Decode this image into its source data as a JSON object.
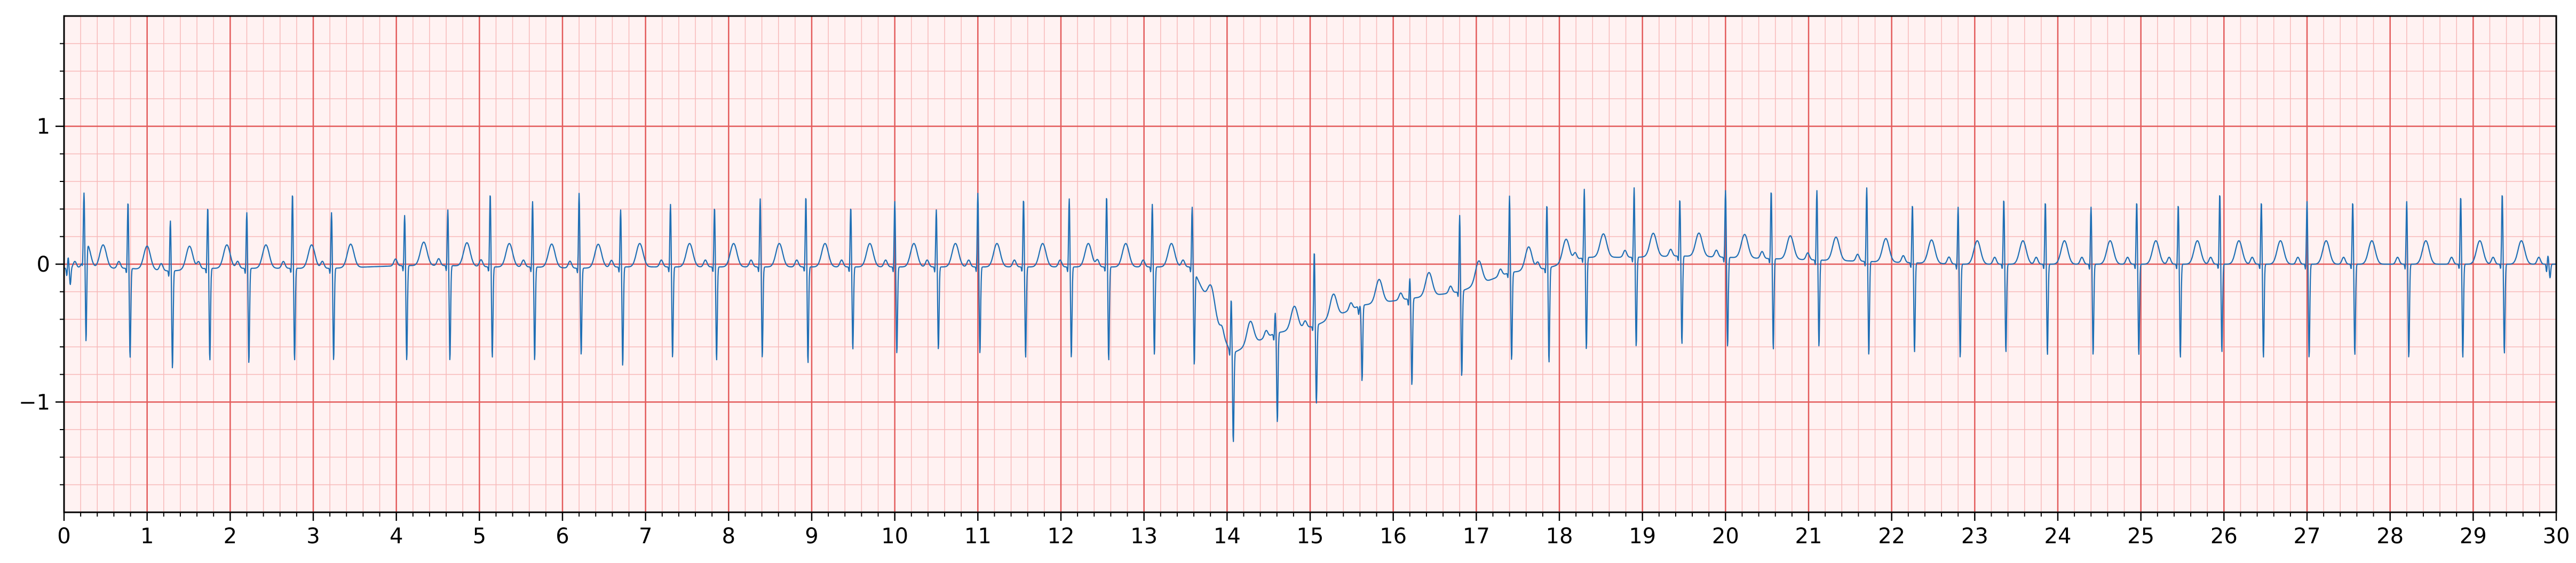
{
  "chart_data": {
    "type": "line",
    "title": "",
    "xlabel": "",
    "ylabel": "",
    "xlim": [
      0,
      30
    ],
    "ylim": [
      -1.8,
      1.8
    ],
    "x_ticks": [
      0,
      1,
      2,
      3,
      4,
      5,
      6,
      7,
      8,
      9,
      10,
      11,
      12,
      13,
      14,
      15,
      16,
      17,
      18,
      19,
      20,
      21,
      22,
      23,
      24,
      25,
      26,
      27,
      28,
      29,
      30
    ],
    "x_tick_labels": [
      "0",
      "1",
      "2",
      "3",
      "4",
      "5",
      "6",
      "7",
      "8",
      "9",
      "10",
      "11",
      "12",
      "13",
      "14",
      "15",
      "16",
      "17",
      "18",
      "19",
      "20",
      "21",
      "22",
      "23",
      "24",
      "25",
      "26",
      "27",
      "28",
      "29",
      "30"
    ],
    "y_ticks": [
      -1,
      0,
      1
    ],
    "y_tick_labels": [
      "−1",
      "0",
      "1"
    ],
    "grid": {
      "major_step_x": 1,
      "major_step_y": 1,
      "minor_step_x": 0.2,
      "minor_step_y": 0.2,
      "major_color": "#e35b5b",
      "minor_color": "#f7b9b9",
      "background": "#fff2f2"
    },
    "line_color": "#1f6fb5",
    "series": [
      {
        "beats": [
          {
            "t": 0.05,
            "r": 0.05,
            "s": -0.15,
            "baseline": -0.03
          },
          {
            "t": 0.24,
            "r": 0.42,
            "s": -0.72,
            "baseline": -0.03
          },
          {
            "t": 0.77,
            "r": 0.46,
            "s": -0.68,
            "baseline": -0.03
          },
          {
            "t": 1.28,
            "r": 0.32,
            "s": -0.76,
            "baseline": -0.05
          },
          {
            "t": 1.73,
            "r": 0.42,
            "s": -0.7,
            "baseline": -0.03
          },
          {
            "t": 2.2,
            "r": 0.38,
            "s": -0.72,
            "baseline": -0.03
          },
          {
            "t": 2.75,
            "r": 0.52,
            "s": -0.7,
            "baseline": -0.03
          },
          {
            "t": 3.22,
            "r": 0.38,
            "s": -0.7,
            "baseline": -0.03
          },
          {
            "t": 4.1,
            "r": 0.36,
            "s": -0.7,
            "baseline": -0.01
          },
          {
            "t": 4.62,
            "r": 0.4,
            "s": -0.7,
            "baseline": -0.01
          },
          {
            "t": 5.13,
            "r": 0.52,
            "s": -0.68,
            "baseline": -0.02
          },
          {
            "t": 5.64,
            "r": 0.46,
            "s": -0.7,
            "baseline": -0.02
          },
          {
            "t": 6.2,
            "r": 0.52,
            "s": -0.66,
            "baseline": -0.03
          },
          {
            "t": 6.7,
            "r": 0.4,
            "s": -0.74,
            "baseline": -0.02
          },
          {
            "t": 7.3,
            "r": 0.44,
            "s": -0.68,
            "baseline": -0.02
          },
          {
            "t": 7.83,
            "r": 0.42,
            "s": -0.7,
            "baseline": -0.02
          },
          {
            "t": 8.38,
            "r": 0.48,
            "s": -0.68,
            "baseline": -0.02
          },
          {
            "t": 8.93,
            "r": 0.5,
            "s": -0.72,
            "baseline": -0.02
          },
          {
            "t": 9.47,
            "r": 0.42,
            "s": -0.62,
            "baseline": -0.02
          },
          {
            "t": 10.0,
            "r": 0.46,
            "s": -0.65,
            "baseline": -0.02
          },
          {
            "t": 10.5,
            "r": 0.4,
            "s": -0.62,
            "baseline": -0.02
          },
          {
            "t": 11.0,
            "r": 0.52,
            "s": -0.65,
            "baseline": -0.02
          },
          {
            "t": 11.55,
            "r": 0.48,
            "s": -0.68,
            "baseline": -0.02
          },
          {
            "t": 12.1,
            "r": 0.48,
            "s": -0.68,
            "baseline": -0.02
          },
          {
            "t": 12.55,
            "r": 0.5,
            "s": -0.7,
            "baseline": -0.02
          },
          {
            "t": 13.1,
            "r": 0.44,
            "s": -0.66,
            "baseline": -0.02
          },
          {
            "t": 13.58,
            "r": 0.42,
            "s": -0.7,
            "baseline": -0.02
          },
          {
            "t": 14.05,
            "r": -0.25,
            "s": -1.3,
            "baseline": -0.65
          },
          {
            "t": 14.58,
            "r": -0.35,
            "s": -1.15,
            "baseline": -0.5
          },
          {
            "t": 15.05,
            "r": 0.1,
            "s": -1.02,
            "baseline": -0.45
          },
          {
            "t": 15.6,
            "r": -0.3,
            "s": -0.85,
            "baseline": -0.3
          },
          {
            "t": 16.2,
            "r": -0.1,
            "s": -0.88,
            "baseline": -0.25
          },
          {
            "t": 16.8,
            "r": 0.36,
            "s": -0.82,
            "baseline": -0.2
          },
          {
            "t": 17.4,
            "r": 0.5,
            "s": -0.7,
            "baseline": -0.06
          },
          {
            "t": 17.85,
            "r": 0.44,
            "s": -0.72,
            "baseline": -0.03
          },
          {
            "t": 18.3,
            "r": 0.55,
            "s": -0.62,
            "baseline": 0.05
          },
          {
            "t": 18.9,
            "r": 0.56,
            "s": -0.6,
            "baseline": 0.05
          },
          {
            "t": 19.45,
            "r": 0.48,
            "s": -0.58,
            "baseline": 0.06
          },
          {
            "t": 20.0,
            "r": 0.54,
            "s": -0.6,
            "baseline": 0.05
          },
          {
            "t": 20.55,
            "r": 0.54,
            "s": -0.62,
            "baseline": 0.04
          },
          {
            "t": 21.1,
            "r": 0.54,
            "s": -0.6,
            "baseline": 0.03
          },
          {
            "t": 21.7,
            "r": 0.56,
            "s": -0.66,
            "baseline": 0.02
          },
          {
            "t": 22.25,
            "r": 0.44,
            "s": -0.64,
            "baseline": 0.01
          },
          {
            "t": 22.8,
            "r": 0.42,
            "s": -0.68,
            "baseline": 0.0
          },
          {
            "t": 23.35,
            "r": 0.48,
            "s": -0.64,
            "baseline": 0.0
          },
          {
            "t": 23.85,
            "r": 0.46,
            "s": -0.66,
            "baseline": 0.0
          },
          {
            "t": 24.4,
            "r": 0.42,
            "s": -0.66,
            "baseline": 0.0
          },
          {
            "t": 24.95,
            "r": 0.46,
            "s": -0.66,
            "baseline": 0.0
          },
          {
            "t": 25.45,
            "r": 0.44,
            "s": -0.68,
            "baseline": 0.0
          },
          {
            "t": 25.95,
            "r": 0.52,
            "s": -0.64,
            "baseline": 0.0
          },
          {
            "t": 26.45,
            "r": 0.46,
            "s": -0.68,
            "baseline": 0.0
          },
          {
            "t": 27.0,
            "r": 0.46,
            "s": -0.68,
            "baseline": 0.0
          },
          {
            "t": 27.55,
            "r": 0.46,
            "s": -0.66,
            "baseline": 0.0
          },
          {
            "t": 28.2,
            "r": 0.46,
            "s": -0.68,
            "baseline": 0.0
          },
          {
            "t": 28.85,
            "r": 0.5,
            "s": -0.68,
            "baseline": 0.0
          },
          {
            "t": 29.35,
            "r": 0.52,
            "s": -0.65,
            "baseline": 0.0
          },
          {
            "t": 29.9,
            "r": 0.06,
            "s": -0.1,
            "baseline": 0.0
          }
        ]
      }
    ]
  }
}
